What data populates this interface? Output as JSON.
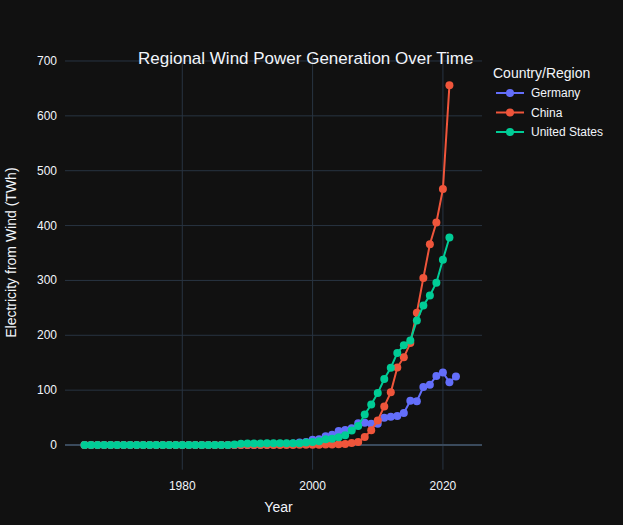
{
  "chart_data": {
    "type": "line",
    "title": "Regional Wind Power Generation Over Time",
    "x_label": "Year",
    "y_label": "Electricity from Wind (TWh)",
    "legend_title": "Country/Region",
    "legend": "right",
    "grid": true,
    "marker": "circle",
    "line_style": "solid",
    "xlim": [
      1962,
      2026
    ],
    "xticks": [
      1980,
      2000,
      2020
    ],
    "ylim": [
      -45,
      710
    ],
    "yticks": [
      0,
      100,
      200,
      300,
      400,
      500,
      600,
      700
    ],
    "x": [
      1965,
      1966,
      1967,
      1968,
      1969,
      1970,
      1971,
      1972,
      1973,
      1974,
      1975,
      1976,
      1977,
      1978,
      1979,
      1980,
      1981,
      1982,
      1983,
      1984,
      1985,
      1986,
      1987,
      1988,
      1989,
      1990,
      1991,
      1992,
      1993,
      1994,
      1995,
      1996,
      1997,
      1998,
      1999,
      2000,
      2001,
      2002,
      2003,
      2004,
      2005,
      2006,
      2007,
      2008,
      2009,
      2010,
      2011,
      2012,
      2013,
      2014,
      2015,
      2016,
      2017,
      2018,
      2019,
      2020,
      2021,
      2022
    ],
    "series": [
      {
        "name": "Germany",
        "color": "#636efa",
        "values": [
          0,
          0,
          0,
          0,
          0,
          0,
          0,
          0,
          0,
          0,
          0,
          0,
          0,
          0,
          0,
          0,
          0,
          0,
          0,
          0,
          0,
          0,
          0,
          0,
          0,
          0.07,
          0.2,
          0.28,
          0.6,
          0.91,
          1.5,
          2.03,
          2.97,
          4.49,
          5.53,
          9.51,
          10.51,
          15.79,
          18.71,
          25.51,
          27.23,
          30.71,
          39.71,
          40.57,
          38.65,
          38.55,
          49.86,
          51.68,
          52.74,
          58.5,
          80.62,
          79.92,
          105.69,
          110,
          126,
          132.1,
          114.6,
          125
        ]
      },
      {
        "name": "China",
        "color": "#EF553B",
        "values": [
          0,
          0,
          0,
          0,
          0,
          0,
          0,
          0,
          0,
          0,
          0,
          0,
          0,
          0,
          0,
          0,
          0,
          0,
          0,
          0,
          0,
          0,
          0,
          0,
          0,
          0,
          0,
          0.01,
          0.02,
          0.03,
          0.06,
          0.1,
          0.2,
          0.4,
          0.5,
          0.6,
          0.7,
          0.9,
          1,
          1.3,
          2,
          3.7,
          5.6,
          14.8,
          26.9,
          44.6,
          70.3,
          96,
          141.2,
          159.8,
          185.8,
          241,
          304.6,
          365.8,
          405.7,
          466.5,
          655.6,
          null
        ]
      },
      {
        "name": "United States",
        "color": "#00cc96",
        "values": [
          0,
          0,
          0,
          0,
          0,
          0,
          0,
          0,
          0,
          0,
          0,
          0,
          0,
          0,
          0,
          0,
          0,
          0,
          0.003,
          0.006,
          0.06,
          0.18,
          0.2,
          0.9,
          2.1,
          2.8,
          2.9,
          2.9,
          3,
          3.4,
          3.2,
          3.2,
          3.3,
          3,
          4.5,
          5.6,
          6.7,
          10.4,
          11.2,
          14.1,
          17.8,
          26.6,
          34.5,
          55.4,
          73.9,
          94.7,
          120.2,
          140.8,
          167.8,
          181.7,
          190.7,
          227,
          254.3,
          272.7,
          295.9,
          337.9,
          378.2,
          null
        ]
      }
    ]
  }
}
